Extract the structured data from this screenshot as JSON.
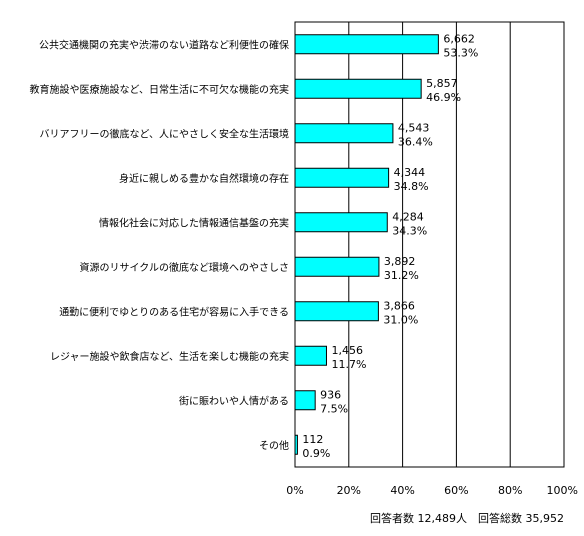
{
  "chart_data": {
    "type": "bar",
    "orientation": "horizontal",
    "categories": [
      "公共交通機関の充実や渋滞のない道路など利便性の確保",
      "教育施設や医療施設など、日常生活に不可欠な機能の充実",
      "バリアフリーの徹底など、人にやさしく安全な生活環境",
      "身近に親しめる豊かな自然環境の存在",
      "情報化社会に対応した情報通信基盤の充実",
      "資源のリサイクルの徹底など環境へのやさしさ",
      "通勤に便利でゆとりのある住宅が容易に入手できる",
      "レジャー施設や飲食店など、生活を楽しむ機能の充実",
      "街に賑わいや人情がある",
      "その他"
    ],
    "counts": [
      "6,662",
      "5,857",
      "4,543",
      "4,344",
      "4,284",
      "3,892",
      "3,866",
      "1,456",
      "936",
      "112"
    ],
    "percent_labels": [
      "53.3%",
      "46.9%",
      "36.4%",
      "34.8%",
      "34.3%",
      "31.2%",
      "31.0%",
      "11.7%",
      "7.5%",
      "0.9%"
    ],
    "values": [
      53.3,
      46.9,
      36.4,
      34.8,
      34.3,
      31.2,
      31.0,
      11.7,
      7.5,
      0.9
    ],
    "xlim": [
      0,
      100
    ],
    "x_ticks": [
      "0%",
      "20%",
      "40%",
      "60%",
      "80%",
      "100%"
    ],
    "grid": true,
    "bar_color": "#00ffff",
    "note": "回答者数 12,489人　回答総数 35,952"
  }
}
